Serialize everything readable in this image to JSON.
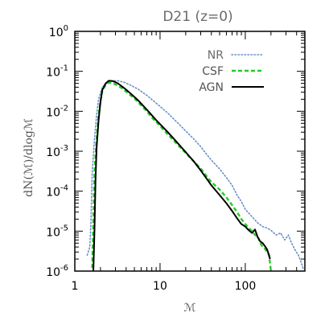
{
  "chart_data": {
    "type": "line",
    "title": "D21 (z=0)",
    "xlabel": "ℳ",
    "ylabel": "dN(ℳ)/dlogℳ",
    "x_scale": "log",
    "y_scale": "log",
    "xlim": [
      1,
      500
    ],
    "ylim": [
      1e-06,
      1
    ],
    "x_ticks": [
      {
        "value": 1,
        "label": "1"
      },
      {
        "value": 10,
        "label": "10"
      },
      {
        "value": 100,
        "label": "100"
      }
    ],
    "y_ticks": [
      {
        "value": 1.0,
        "base": "10",
        "exp": "0"
      },
      {
        "value": 0.1,
        "base": "10",
        "exp": "-1"
      },
      {
        "value": 0.01,
        "base": "10",
        "exp": "-2"
      },
      {
        "value": 0.001,
        "base": "10",
        "exp": "-3"
      },
      {
        "value": 0.0001,
        "base": "10",
        "exp": "-4"
      },
      {
        "value": 1e-05,
        "base": "10",
        "exp": "-5"
      },
      {
        "value": 1e-06,
        "base": "10",
        "exp": "-6"
      }
    ],
    "legend_position": "top-right",
    "series": [
      {
        "name": "NR",
        "color": "#6b8fc9",
        "style": "dotted",
        "points": [
          [
            1.4,
            2.5e-06
          ],
          [
            1.5,
            4e-06
          ],
          [
            1.55,
            2e-05
          ],
          [
            1.6,
            0.0003
          ],
          [
            1.7,
            0.002
          ],
          [
            1.8,
            0.008
          ],
          [
            1.9,
            0.02
          ],
          [
            2.1,
            0.04
          ],
          [
            2.4,
            0.052
          ],
          [
            2.8,
            0.058
          ],
          [
            3.2,
            0.058
          ],
          [
            3.8,
            0.053
          ],
          [
            4.5,
            0.045
          ],
          [
            5.5,
            0.036
          ],
          [
            7,
            0.025
          ],
          [
            9,
            0.016
          ],
          [
            12,
            0.0095
          ],
          [
            16,
            0.0052
          ],
          [
            20,
            0.0032
          ],
          [
            25,
            0.002
          ],
          [
            30,
            0.0013
          ],
          [
            35,
            0.00085
          ],
          [
            40,
            0.0006
          ],
          [
            50,
            0.00036
          ],
          [
            60,
            0.00022
          ],
          [
            70,
            0.00014
          ],
          [
            80,
            8e-05
          ],
          [
            90,
            5.5e-05
          ],
          [
            100,
            3.5e-05
          ],
          [
            120,
            2.3e-05
          ],
          [
            140,
            1.6e-05
          ],
          [
            160,
            1.3e-05
          ],
          [
            180,
            1.2e-05
          ],
          [
            200,
            1.05e-05
          ],
          [
            230,
            8e-06
          ],
          [
            260,
            9e-06
          ],
          [
            290,
            6e-06
          ],
          [
            320,
            8e-06
          ],
          [
            350,
            5e-06
          ],
          [
            380,
            3.5e-06
          ],
          [
            420,
            2.5e-06
          ],
          [
            460,
            1.5e-06
          ],
          [
            480,
            1.1e-06
          ]
        ]
      },
      {
        "name": "CSF",
        "color": "#22cc22",
        "style": "dashed",
        "points": [
          [
            1.6,
            1.2e-06
          ],
          [
            1.65,
            2e-05
          ],
          [
            1.7,
            0.0003
          ],
          [
            1.8,
            0.002
          ],
          [
            1.9,
            0.008
          ],
          [
            2.0,
            0.018
          ],
          [
            2.1,
            0.032
          ],
          [
            2.3,
            0.046
          ],
          [
            2.5,
            0.052
          ],
          [
            2.7,
            0.051
          ],
          [
            3.0,
            0.047
          ],
          [
            3.5,
            0.039
          ],
          [
            4.0,
            0.031
          ],
          [
            5.0,
            0.021
          ],
          [
            6.0,
            0.014
          ],
          [
            7.0,
            0.01
          ],
          [
            8.0,
            0.007
          ],
          [
            10,
            0.0043
          ],
          [
            12,
            0.0028
          ],
          [
            15,
            0.0017
          ],
          [
            20,
            0.0009
          ],
          [
            25,
            0.00055
          ],
          [
            30,
            0.00037
          ],
          [
            35,
            0.00024
          ],
          [
            40,
            0.00017
          ],
          [
            50,
            0.00011
          ],
          [
            60,
            7e-05
          ],
          [
            70,
            4.5e-05
          ],
          [
            80,
            3e-05
          ],
          [
            90,
            2e-05
          ],
          [
            100,
            1.5e-05
          ],
          [
            110,
            1.2e-05
          ],
          [
            120,
            1e-05
          ],
          [
            130,
            8e-06
          ],
          [
            140,
            7.5e-06
          ],
          [
            150,
            5e-06
          ],
          [
            160,
            4e-06
          ],
          [
            170,
            3.6e-06
          ],
          [
            180,
            3e-06
          ],
          [
            190,
            2.5e-06
          ],
          [
            200,
            1e-06
          ]
        ]
      },
      {
        "name": "AGN",
        "color": "#000000",
        "style": "solid",
        "points": [
          [
            1.65,
            1e-06
          ],
          [
            1.7,
            1e-05
          ],
          [
            1.75,
            0.0002
          ],
          [
            1.8,
            0.0012
          ],
          [
            1.9,
            0.006
          ],
          [
            2.0,
            0.017
          ],
          [
            2.1,
            0.034
          ],
          [
            2.3,
            0.05
          ],
          [
            2.5,
            0.058
          ],
          [
            2.8,
            0.057
          ],
          [
            3.2,
            0.05
          ],
          [
            3.8,
            0.038
          ],
          [
            4.5,
            0.028
          ],
          [
            5.5,
            0.019
          ],
          [
            7.0,
            0.011
          ],
          [
            9.0,
            0.006
          ],
          [
            12,
            0.0032
          ],
          [
            15,
            0.0019
          ],
          [
            20,
            0.00095
          ],
          [
            25,
            0.00055
          ],
          [
            30,
            0.00033
          ],
          [
            35,
            0.00021
          ],
          [
            40,
            0.00014
          ],
          [
            50,
            8e-05
          ],
          [
            60,
            5e-05
          ],
          [
            70,
            3.2e-05
          ],
          [
            80,
            2.1e-05
          ],
          [
            90,
            1.5e-05
          ],
          [
            100,
            1.3e-05
          ],
          [
            110,
            1.05e-05
          ],
          [
            120,
            9e-06
          ],
          [
            130,
            1.1e-05
          ],
          [
            140,
            7e-06
          ],
          [
            150,
            5.5e-06
          ],
          [
            160,
            5e-06
          ],
          [
            170,
            4.2e-06
          ],
          [
            180,
            3.5e-06
          ],
          [
            190,
            2.5e-06
          ],
          [
            195,
            2e-06
          ]
        ]
      }
    ]
  }
}
